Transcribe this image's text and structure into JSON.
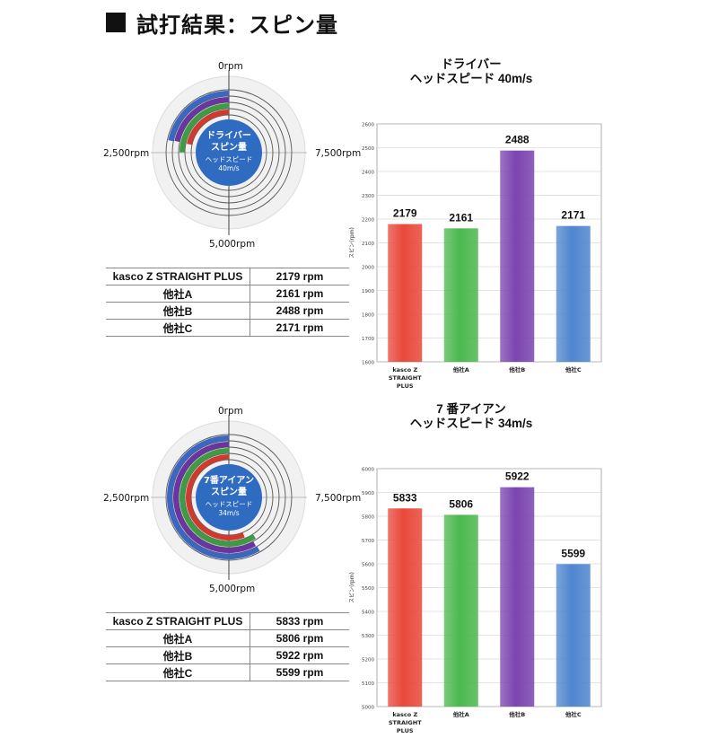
{
  "heading": "試打結果：スピン量",
  "sections": [
    {
      "dial": {
        "top_label": "0rpm",
        "left_label": "2,500rpm",
        "right_label": "7,500rpm",
        "bottom_label": "5,000rpm",
        "center_title_1": "ドライバー",
        "center_title_2": "スピン量",
        "center_sub_1": "ヘッドスピード",
        "center_sub_2": "40m/s",
        "colors": [
          "#3a67c0",
          "#6a35a0",
          "#3f9a45",
          "#cf3a30"
        ]
      },
      "table": [
        {
          "name": "kasco Z STRAIGHT PLUS",
          "value": "2179 rpm"
        },
        {
          "name": "他社A",
          "value": "2161 rpm"
        },
        {
          "name": "他社B",
          "value": "2488 rpm"
        },
        {
          "name": "他社C",
          "value": "2171 rpm"
        }
      ]
    },
    {
      "dial": {
        "top_label": "0rpm",
        "left_label": "2,500rpm",
        "right_label": "7,500rpm",
        "bottom_label": "5,000rpm",
        "center_title_1": "7番アイアン",
        "center_title_2": "スピン量",
        "center_sub_1": "ヘッドスピード",
        "center_sub_2": "34m/s",
        "colors": [
          "#3a67c0",
          "#6a35a0",
          "#3f9a45",
          "#cf3a30"
        ]
      },
      "table": [
        {
          "name": "kasco Z STRAIGHT PLUS",
          "value": "5833 rpm"
        },
        {
          "name": "他社A",
          "value": "5806 rpm"
        },
        {
          "name": "他社B",
          "value": "5922 rpm"
        },
        {
          "name": "他社C",
          "value": "5599 rpm"
        }
      ]
    }
  ],
  "chart_data": [
    {
      "type": "bar",
      "title": "ドライバー",
      "subtitle": "ヘッドスピード 40m/s",
      "ylabel": "スピン(rpm)",
      "categories": [
        "kasco Z STRAIGHT PLUS",
        "他社A",
        "他社B",
        "他社C"
      ],
      "values": [
        2179,
        2161,
        2488,
        2171
      ],
      "ylim": [
        1600,
        2600
      ],
      "yticks": [
        1600,
        1700,
        1800,
        1900,
        2000,
        2100,
        2200,
        2300,
        2400,
        2500,
        2600
      ],
      "colors": [
        "#e8493a",
        "#4cb84f",
        "#7b45b0",
        "#4f86cf"
      ],
      "grid": true
    },
    {
      "type": "bar",
      "title": "7 番アイアン",
      "subtitle": "ヘッドスピード 34m/s",
      "ylabel": "スピン(rpm)",
      "categories": [
        "kasco Z STRAIGHT PLUS",
        "他社A",
        "他社B",
        "他社C"
      ],
      "values": [
        5833,
        5806,
        5922,
        5599
      ],
      "ylim": [
        5000,
        6000
      ],
      "yticks": [
        5000,
        5100,
        5200,
        5300,
        5400,
        5500,
        5600,
        5700,
        5800,
        5900,
        6000
      ],
      "colors": [
        "#e8493a",
        "#4cb84f",
        "#7b45b0",
        "#4f86cf"
      ],
      "grid": true
    }
  ]
}
